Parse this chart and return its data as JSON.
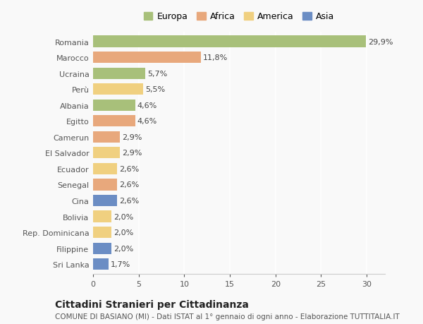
{
  "countries": [
    "Romania",
    "Marocco",
    "Ucraina",
    "Perù",
    "Albania",
    "Egitto",
    "Camerun",
    "El Salvador",
    "Ecuador",
    "Senegal",
    "Cina",
    "Bolivia",
    "Rep. Dominicana",
    "Filippine",
    "Sri Lanka"
  ],
  "values": [
    29.9,
    11.8,
    5.7,
    5.5,
    4.6,
    4.6,
    2.9,
    2.9,
    2.6,
    2.6,
    2.6,
    2.0,
    2.0,
    2.0,
    1.7
  ],
  "labels": [
    "29,9%",
    "11,8%",
    "5,7%",
    "5,5%",
    "4,6%",
    "4,6%",
    "2,9%",
    "2,9%",
    "2,6%",
    "2,6%",
    "2,6%",
    "2,0%",
    "2,0%",
    "2,0%",
    "1,7%"
  ],
  "continents": [
    "Europa",
    "Africa",
    "Europa",
    "America",
    "Europa",
    "Africa",
    "Africa",
    "America",
    "America",
    "Africa",
    "Asia",
    "America",
    "America",
    "Asia",
    "Asia"
  ],
  "colors": {
    "Europa": "#a8c07a",
    "Africa": "#e8a87c",
    "America": "#f0d080",
    "Asia": "#6b8dc4"
  },
  "xlim": [
    0,
    32
  ],
  "xticks": [
    0,
    5,
    10,
    15,
    20,
    25,
    30
  ],
  "title": "Cittadini Stranieri per Cittadinanza",
  "subtitle": "COMUNE DI BASIANO (MI) - Dati ISTAT al 1° gennaio di ogni anno - Elaborazione TUTTITALIA.IT",
  "background_color": "#f9f9f9",
  "bar_height": 0.72,
  "label_fontsize": 8,
  "tick_fontsize": 8,
  "title_fontsize": 10,
  "subtitle_fontsize": 7.5
}
